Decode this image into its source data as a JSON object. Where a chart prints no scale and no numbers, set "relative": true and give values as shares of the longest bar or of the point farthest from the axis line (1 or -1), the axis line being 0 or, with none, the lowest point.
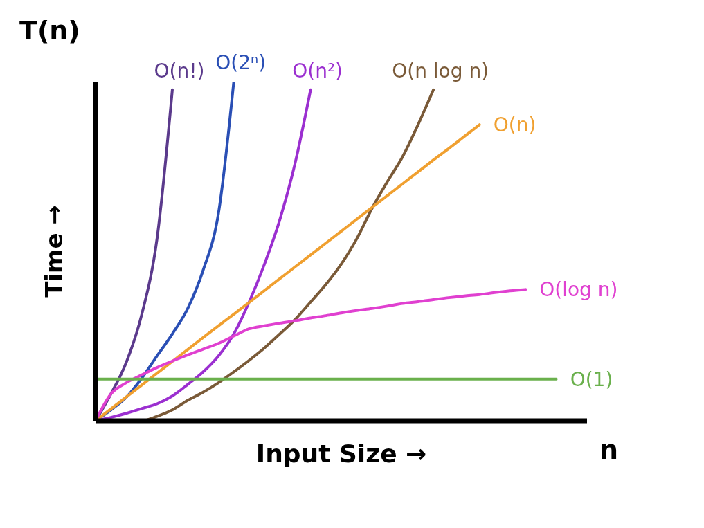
{
  "chart_data": {
    "type": "line",
    "relative": true,
    "xlabel": "Input Size →",
    "ylabel": "Time →",
    "annotations": [
      "T(n)",
      "n"
    ],
    "categories": [
      null,
      null,
      null,
      null,
      null,
      null,
      null,
      null,
      null,
      null,
      null,
      null,
      null,
      null,
      null,
      null,
      null,
      null,
      null,
      null,
      null,
      null,
      null,
      null,
      null,
      null,
      null,
      null,
      null,
      null,
      null,
      null,
      null
    ],
    "grid": false,
    "legend": false,
    "marker": "none",
    "line_style": "solid",
    "series": [
      {
        "name": "O(n!)",
        "color": "#5b3a8c",
        "values": [
          0,
          0.079,
          0.172,
          0.312,
          0.536,
          0.976,
          null,
          null,
          null,
          null,
          null,
          null,
          null,
          null,
          null,
          null,
          null,
          null,
          null,
          null,
          null,
          null,
          null,
          null,
          null,
          null,
          null,
          null,
          null,
          null,
          null,
          null,
          null
        ]
      },
      {
        "name": "O(2ⁿ)",
        "color": "#2a4fb5",
        "values": [
          0,
          0.032,
          0.069,
          0.125,
          0.191,
          0.256,
          0.331,
          0.443,
          0.611,
          1,
          null,
          null,
          null,
          null,
          null,
          null,
          null,
          null,
          null,
          null,
          null,
          null,
          null,
          null,
          null,
          null,
          null,
          null,
          null,
          null,
          null,
          null,
          null
        ]
      },
      {
        "name": "O(n²)",
        "color": "#9b2fd0",
        "values": [
          0,
          0.01,
          0.022,
          0.036,
          0.05,
          0.073,
          0.107,
          0.144,
          0.191,
          0.256,
          0.35,
          0.462,
          0.593,
          0.761,
          0.976,
          null,
          null,
          null,
          null,
          null,
          null,
          null,
          null,
          null,
          null,
          null,
          null,
          null,
          null,
          null,
          null,
          null,
          null
        ]
      },
      {
        "name": "O(n log n)",
        "color": "#7a5a38",
        "values": [
          0,
          0,
          0,
          0,
          0.013,
          0.032,
          0.06,
          0.084,
          0.112,
          0.144,
          0.178,
          0.215,
          0.256,
          0.299,
          0.35,
          0.402,
          0.462,
          0.536,
          0.626,
          0.705,
          0.779,
          0.873,
          0.976,
          null,
          null,
          null,
          null,
          null,
          null,
          null,
          null,
          null,
          null
        ]
      },
      {
        "name": "O(n)",
        "color": "#f0a030",
        "values": [
          0,
          0.035,
          0.07,
          0.105,
          0.14,
          0.175,
          0.21,
          0.245,
          0.28,
          0.314,
          0.349,
          0.384,
          0.419,
          0.454,
          0.489,
          0.524,
          0.559,
          0.594,
          0.629,
          0.664,
          0.699,
          0.734,
          0.769,
          0.803,
          0.838,
          0.873,
          null,
          null,
          null,
          null,
          null,
          null,
          null
        ]
      },
      {
        "name": "O(log n)",
        "color": "#e040d0",
        "values": [
          0,
          0.079,
          0.112,
          0.135,
          0.157,
          0.176,
          0.194,
          0.211,
          0.228,
          0.25,
          0.271,
          0.28,
          0.288,
          0.295,
          0.303,
          0.31,
          0.318,
          0.325,
          0.331,
          0.338,
          0.346,
          0.351,
          0.357,
          0.363,
          0.368,
          0.372,
          0.378,
          0.383,
          0.387,
          null,
          null,
          null,
          null
        ]
      },
      {
        "name": "O(1)",
        "color": "#6ab04c",
        "values": [
          0.123,
          0.123,
          0.123,
          0.123,
          0.123,
          0.123,
          0.123,
          0.123,
          0.123,
          0.123,
          0.123,
          0.123,
          0.123,
          0.123,
          0.123,
          0.123,
          0.123,
          0.123,
          0.123,
          0.123,
          0.123,
          0.123,
          0.123,
          0.123,
          0.123,
          0.123,
          0.123,
          0.123,
          0.123,
          0.123,
          0.123,
          null,
          null
        ]
      }
    ]
  }
}
